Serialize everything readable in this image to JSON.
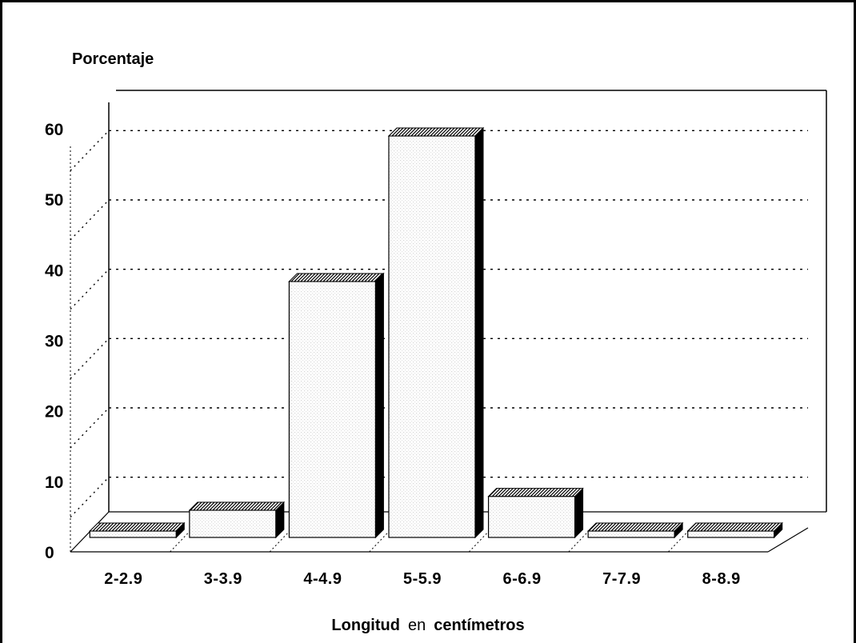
{
  "chart_data": {
    "type": "bar",
    "title": "Porcentaje",
    "xlabel_parts": [
      "Longitud",
      "en",
      "centímetros"
    ],
    "categories": [
      "2-2.9",
      "3-3.9",
      "4-4.9",
      "5-5.9",
      "6-6.9",
      "7-7.9",
      "8-8.9"
    ],
    "values": [
      0,
      3,
      36,
      57,
      5,
      0,
      0
    ],
    "yticks": [
      "0",
      "10",
      "20",
      "30",
      "40",
      "50",
      "60"
    ],
    "ylim": [
      0,
      60
    ],
    "grid": "dotted horizontal",
    "legend": "none",
    "bar_fill": "#f2f2f2",
    "bar_side": "#000000",
    "bar_top": "#d9d9d9"
  }
}
